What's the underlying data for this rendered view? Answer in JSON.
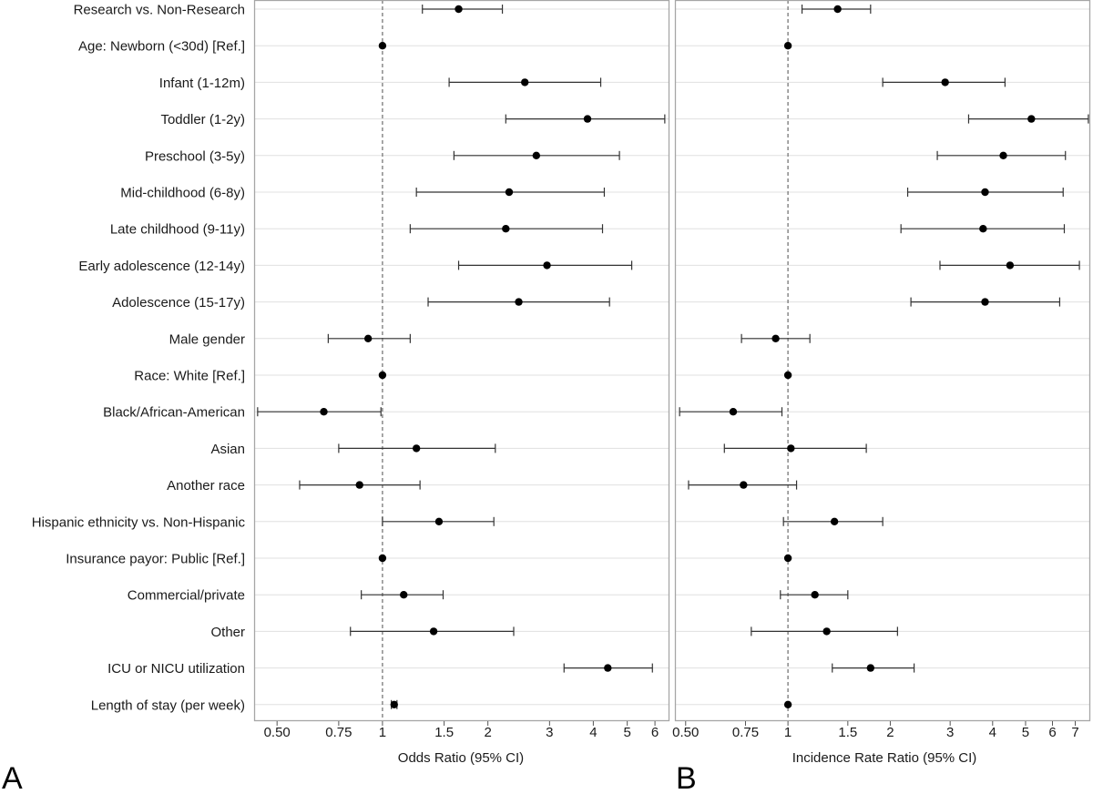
{
  "chart_data": {
    "type": "forest",
    "rows": [
      "Research vs. Non-Research",
      "Age: Newborn (<30d) [Ref.]",
      "Infant (1-12m)",
      "Toddler (1-2y)",
      "Preschool (3-5y)",
      "Mid-childhood (6-8y)",
      "Late childhood (9-11y)",
      "Early adolescence (12-14y)",
      "Adolescence (15-17y)",
      "Male gender",
      "Race: White [Ref.]",
      "Black/African-American",
      "Asian",
      "Another race",
      "Hispanic ethnicity vs. Non-Hispanic",
      "Insurance payor: Public [Ref.]",
      "Commercial/private",
      "Other",
      "ICU or NICU utilization",
      "Length of stay (per week)"
    ],
    "panels": [
      {
        "label": "A",
        "xlabel": "Odds Ratio (95% CI)",
        "scale": "log",
        "xlim": [
          0.43,
          6.6
        ],
        "ticks": [
          0.5,
          0.75,
          1,
          1.5,
          2,
          3,
          4,
          5,
          6
        ],
        "tick_labels": [
          "0.50",
          "0.75",
          "1",
          "1.5",
          "2",
          "3",
          "4",
          "5",
          "6"
        ],
        "reference_line": 1,
        "estimates": [
          1.65,
          1,
          2.55,
          3.85,
          2.75,
          2.3,
          2.25,
          2.95,
          2.45,
          0.91,
          1,
          0.68,
          1.25,
          0.86,
          1.45,
          1,
          1.15,
          1.4,
          4.4,
          1.08
        ],
        "ci_low": [
          1.3,
          null,
          1.55,
          2.25,
          1.6,
          1.25,
          1.2,
          1.65,
          1.35,
          0.7,
          null,
          0.44,
          0.75,
          0.58,
          1,
          null,
          0.87,
          0.81,
          3.3,
          1.06
        ],
        "ci_high": [
          2.2,
          null,
          4.2,
          6.4,
          4.75,
          4.3,
          4.25,
          5.15,
          4.45,
          1.2,
          null,
          0.99,
          2.1,
          1.28,
          2.08,
          null,
          1.49,
          2.37,
          5.9,
          1.1
        ]
      },
      {
        "label": "B",
        "xlabel": "Incidence Rate Ratio (95% CI)",
        "scale": "log",
        "xlim": [
          0.465,
          7.75
        ],
        "ticks": [
          0.5,
          0.75,
          1,
          1.5,
          2,
          3,
          4,
          5,
          6,
          7
        ],
        "tick_labels": [
          "0.50",
          "0.75",
          "1",
          "1.5",
          "2",
          "3",
          "4",
          "5",
          "6",
          "7"
        ],
        "reference_line": 1,
        "estimates": [
          1.4,
          1,
          2.9,
          5.2,
          4.3,
          3.8,
          3.75,
          4.5,
          3.8,
          0.92,
          1,
          0.69,
          1.02,
          0.74,
          1.37,
          1,
          1.2,
          1.3,
          1.75,
          1
        ],
        "ci_low": [
          1.1,
          null,
          1.9,
          3.4,
          2.75,
          2.25,
          2.15,
          2.8,
          2.3,
          0.73,
          null,
          0.48,
          0.65,
          0.51,
          0.97,
          null,
          0.95,
          0.78,
          1.35,
          null
        ],
        "ci_high": [
          1.75,
          null,
          4.35,
          7.65,
          6.55,
          6.45,
          6.5,
          7.2,
          6.3,
          1.16,
          null,
          0.96,
          1.7,
          1.06,
          1.9,
          null,
          1.5,
          2.1,
          2.35,
          null
        ]
      }
    ]
  }
}
